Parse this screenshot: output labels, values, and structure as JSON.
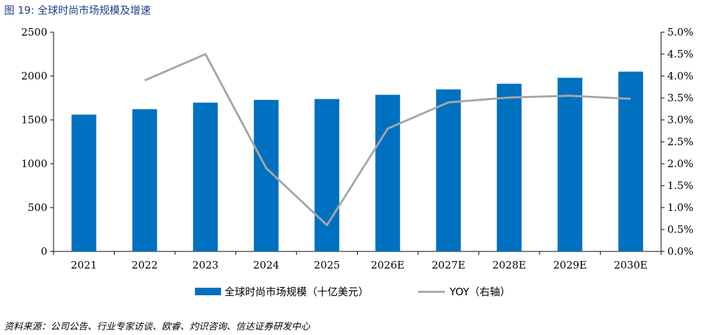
{
  "figure": {
    "title": "图 19:  全球时尚市场规模及增速",
    "source": "资料来源：公司公告、行业专家访谈、欧睿、灼识咨询、信达证券研发中心"
  },
  "colors": {
    "bar": "#0070c0",
    "line": "#a6a6a6",
    "title": "#1f3d8a"
  },
  "chart_data": {
    "type": "bar",
    "title": "全球时尚市场规模及增速",
    "categories": [
      "2021",
      "2022",
      "2023",
      "2024",
      "2025",
      "2026E",
      "2027E",
      "2028E",
      "2029E",
      "2030E"
    ],
    "series": [
      {
        "name": "全球时尚市场规模（十亿美元）",
        "type": "bar",
        "axis": "left",
        "values": [
          1560,
          1622,
          1697,
          1728,
          1738,
          1786,
          1848,
          1912,
          1980,
          2050
        ]
      },
      {
        "name": "YOY（右轴）",
        "type": "line",
        "axis": "right",
        "values": [
          null,
          0.039,
          0.045,
          0.019,
          0.006,
          0.028,
          0.034,
          0.0351,
          0.0355,
          0.0348
        ]
      }
    ],
    "y_left": {
      "min": 0,
      "max": 2500,
      "ticks": [
        "0",
        "500",
        "1000",
        "1500",
        "2000",
        "2500"
      ]
    },
    "y_right": {
      "min": 0,
      "max": 0.05,
      "ticks": [
        "0.0%",
        "0.5%",
        "1.0%",
        "1.5%",
        "2.0%",
        "2.5%",
        "3.0%",
        "3.5%",
        "4.0%",
        "4.5%",
        "5.0%"
      ]
    },
    "grid": false,
    "legend_position": "bottom"
  }
}
